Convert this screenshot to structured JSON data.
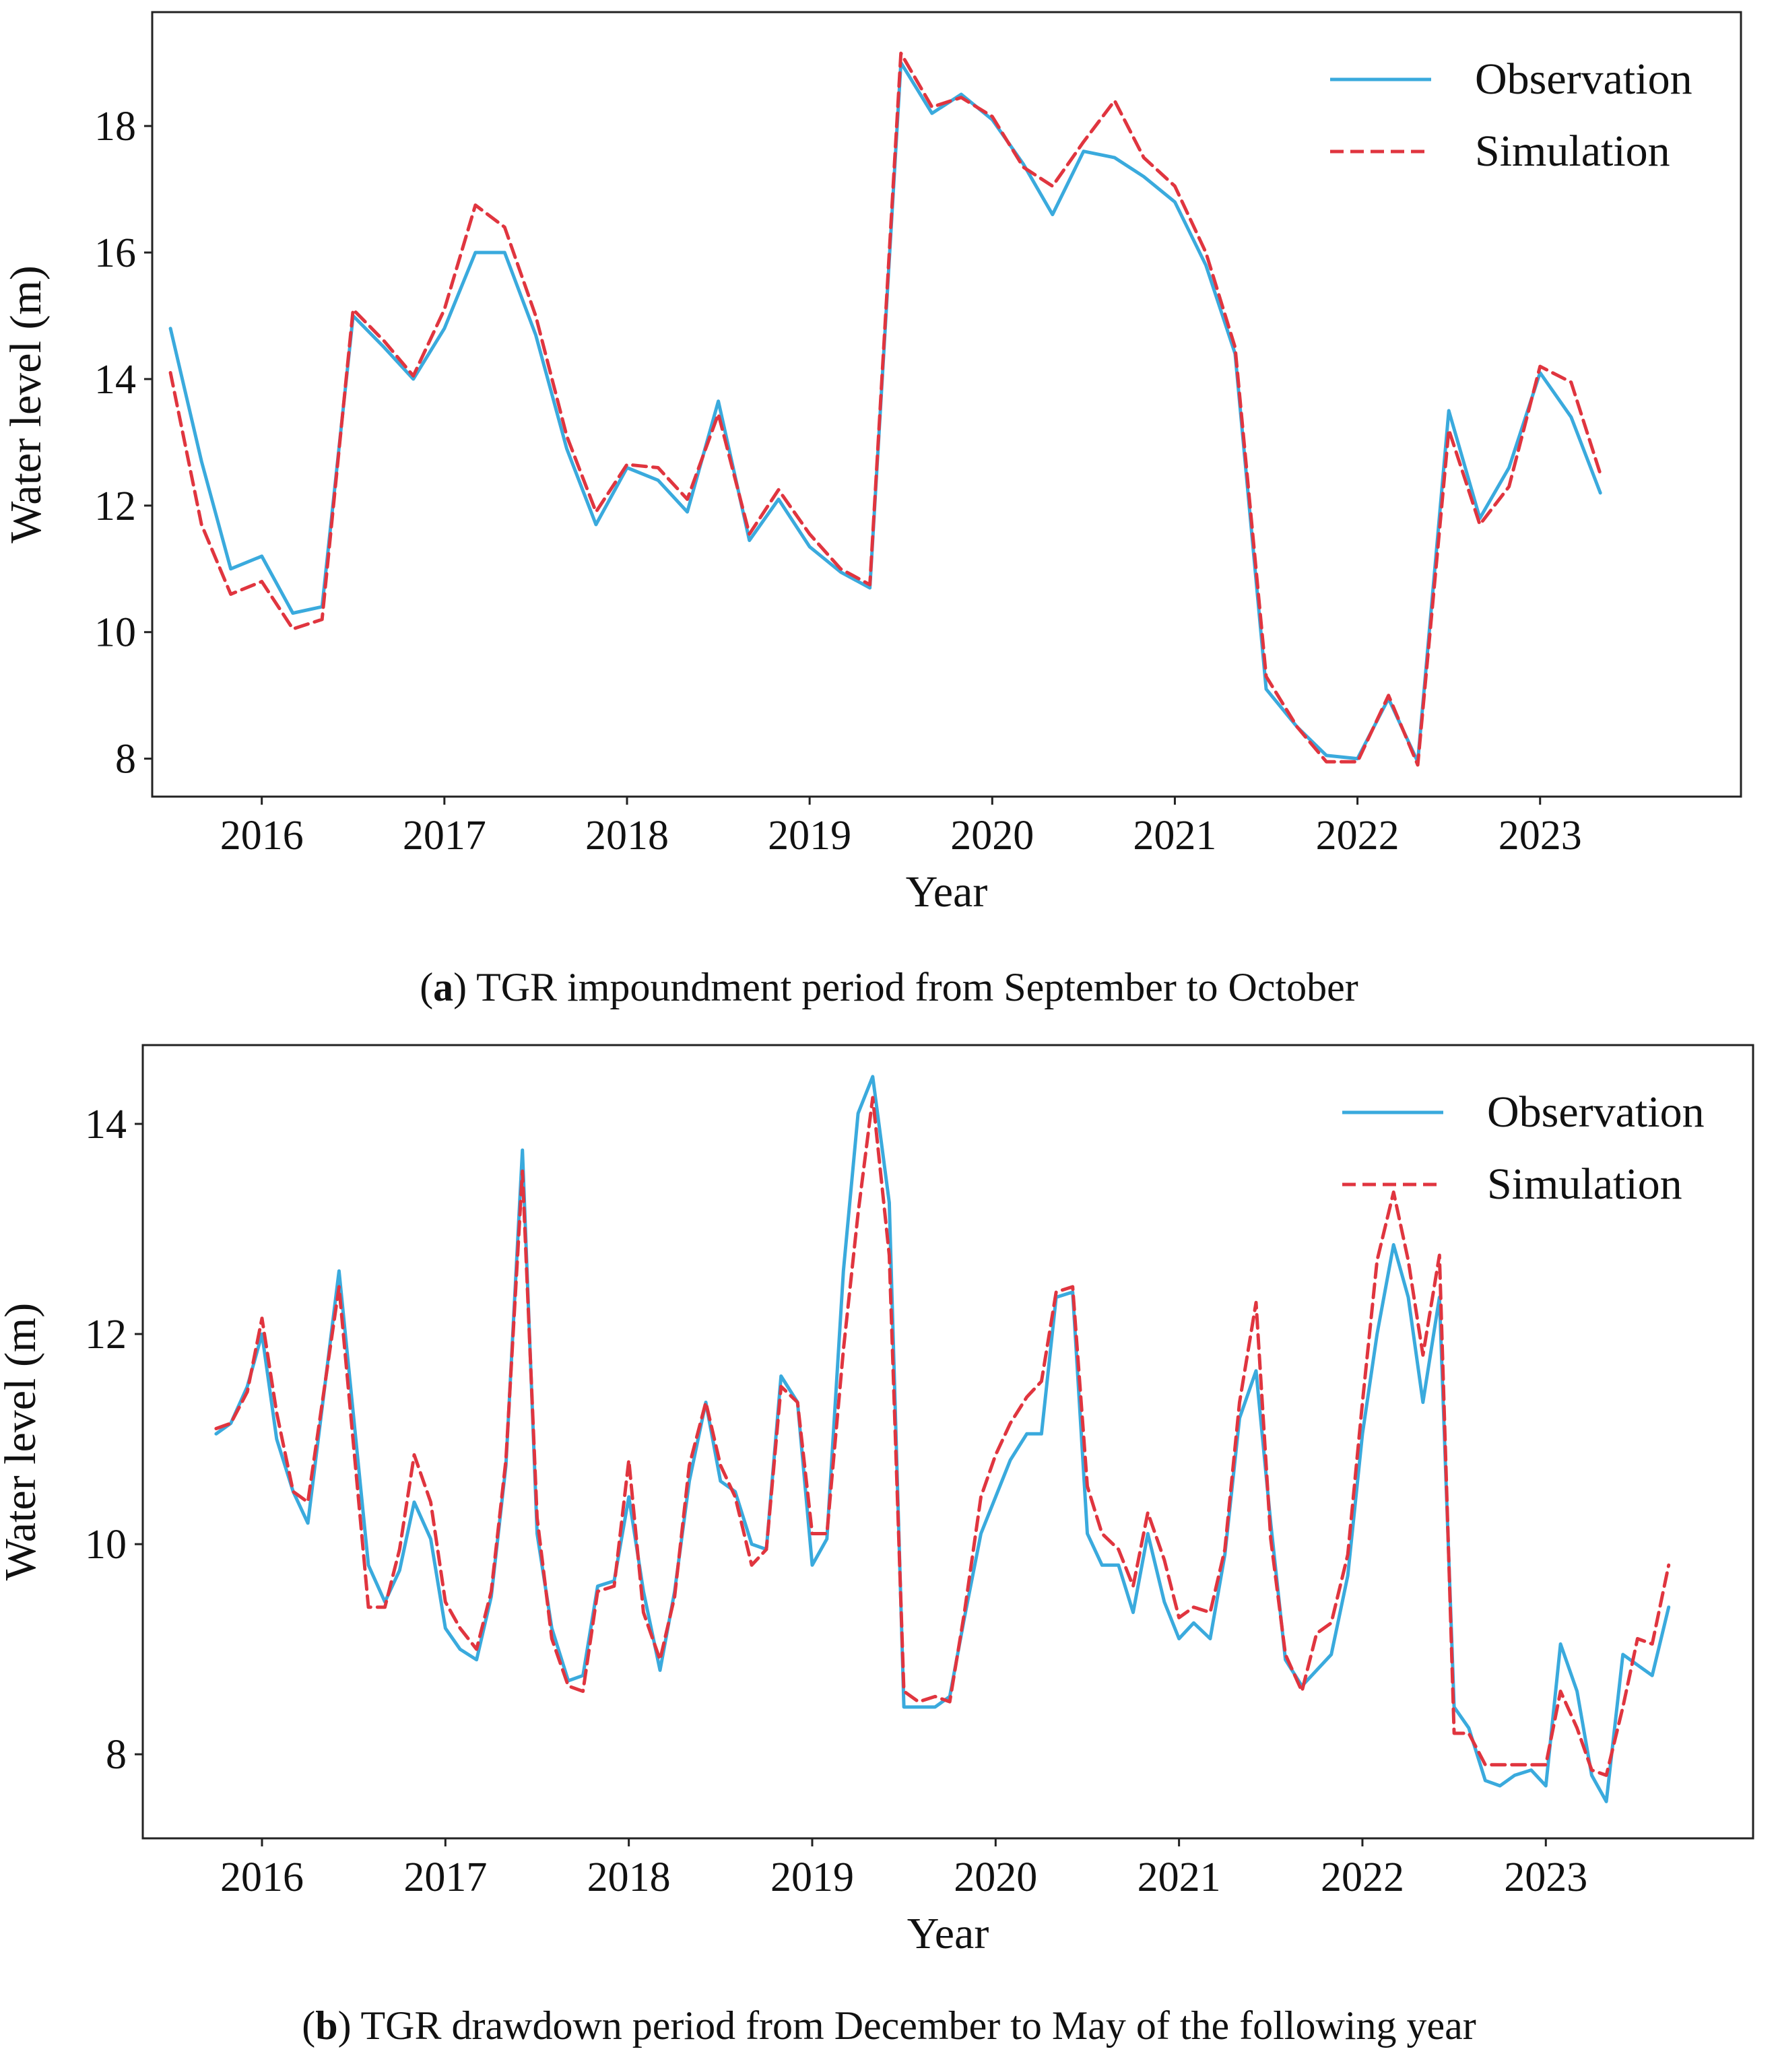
{
  "chart_data": [
    {
      "type": "line",
      "title": "",
      "xlabel": "Year",
      "ylabel": "Water level (m)",
      "xlim": [
        2015.4,
        2024.1
      ],
      "ylim": [
        7.4,
        19.8
      ],
      "xticks": [
        2016,
        2017,
        2018,
        2019,
        2020,
        2021,
        2022,
        2023
      ],
      "yticks": [
        8,
        10,
        12,
        14,
        16,
        18
      ],
      "legend_position": "top-right",
      "colors": {
        "Observation": "#3aaadd",
        "Simulation": "#e0353f"
      },
      "caption": {
        "label": "a",
        "text": " TGR impoundment period from September to October"
      },
      "series": [
        {
          "name": "Observation",
          "x": [
            2015.5,
            2015.67,
            2015.83,
            2016.0,
            2016.17,
            2016.33,
            2016.5,
            2016.67,
            2016.83,
            2017.0,
            2017.17,
            2017.33,
            2017.5,
            2017.67,
            2017.83,
            2018.0,
            2018.17,
            2018.33,
            2018.5,
            2018.67,
            2018.83,
            2019.0,
            2019.17,
            2019.33,
            2019.5,
            2019.67,
            2019.83,
            2020.0,
            2020.17,
            2020.33,
            2020.5,
            2020.67,
            2020.83,
            2021.0,
            2021.17,
            2021.33,
            2021.5,
            2021.67,
            2021.83,
            2022.0,
            2022.17,
            2022.33,
            2022.5,
            2022.67,
            2022.83,
            2023.0,
            2023.17,
            2023.33
          ],
          "values": [
            14.8,
            12.7,
            11.0,
            11.2,
            10.3,
            10.4,
            15.0,
            14.5,
            14.0,
            14.8,
            16.0,
            16.0,
            14.7,
            12.9,
            11.7,
            12.6,
            12.4,
            11.9,
            13.65,
            11.45,
            12.1,
            11.35,
            10.95,
            10.7,
            19.0,
            18.2,
            18.5,
            18.1,
            17.4,
            16.6,
            17.6,
            17.5,
            17.2,
            16.8,
            15.8,
            14.4,
            9.1,
            8.5,
            8.05,
            8.0,
            8.95,
            7.95,
            13.5,
            11.8,
            12.6,
            14.1,
            13.4,
            12.2
          ]
        },
        {
          "name": "Simulation",
          "x": [
            2015.5,
            2015.67,
            2015.83,
            2016.0,
            2016.17,
            2016.33,
            2016.5,
            2016.67,
            2016.83,
            2017.0,
            2017.17,
            2017.33,
            2017.5,
            2017.67,
            2017.83,
            2018.0,
            2018.17,
            2018.33,
            2018.5,
            2018.67,
            2018.83,
            2019.0,
            2019.17,
            2019.33,
            2019.5,
            2019.67,
            2019.83,
            2020.0,
            2020.17,
            2020.33,
            2020.5,
            2020.67,
            2020.83,
            2021.0,
            2021.17,
            2021.33,
            2021.5,
            2021.67,
            2021.83,
            2022.0,
            2022.17,
            2022.33,
            2022.5,
            2022.67,
            2022.83,
            2023.0,
            2023.17,
            2023.33
          ],
          "values": [
            14.1,
            11.7,
            10.6,
            10.8,
            10.05,
            10.2,
            15.1,
            14.6,
            14.05,
            15.1,
            16.75,
            16.4,
            15.0,
            13.1,
            11.9,
            12.65,
            12.6,
            12.1,
            13.45,
            11.55,
            12.25,
            11.55,
            11.0,
            10.75,
            19.15,
            18.3,
            18.45,
            18.15,
            17.35,
            17.05,
            17.75,
            18.4,
            17.5,
            17.05,
            16.0,
            14.5,
            9.3,
            8.5,
            7.95,
            7.95,
            9.0,
            7.9,
            13.2,
            11.7,
            12.3,
            14.2,
            13.95,
            12.5
          ]
        }
      ]
    },
    {
      "type": "line",
      "title": "",
      "xlabel": "Year",
      "ylabel": "Water level (m)",
      "xlim": [
        2015.35,
        2024.13
      ],
      "ylim": [
        7.2,
        14.75
      ],
      "xticks": [
        2016,
        2017,
        2018,
        2019,
        2020,
        2021,
        2022,
        2023
      ],
      "yticks": [
        8,
        10,
        12,
        14
      ],
      "legend_position": "top-right",
      "colors": {
        "Observation": "#3aaadd",
        "Simulation": "#e0353f"
      },
      "caption": {
        "label": "b",
        "text": " TGR drawdown period from December to May of the following year"
      },
      "series": [
        {
          "name": "Observation",
          "x": [
            2015.75,
            2015.83,
            2015.92,
            2016.0,
            2016.08,
            2016.17,
            2016.25,
            2016.42,
            2016.58,
            2016.67,
            2016.75,
            2016.83,
            2016.92,
            2017.0,
            2017.08,
            2017.17,
            2017.25,
            2017.33,
            2017.42,
            2017.5,
            2017.58,
            2017.67,
            2017.75,
            2017.83,
            2017.92,
            2018.0,
            2018.08,
            2018.17,
            2018.25,
            2018.33,
            2018.42,
            2018.5,
            2018.58,
            2018.67,
            2018.75,
            2018.83,
            2018.92,
            2019.0,
            2019.08,
            2019.17,
            2019.25,
            2019.33,
            2019.42,
            2019.5,
            2019.58,
            2019.67,
            2019.75,
            2019.83,
            2019.92,
            2020.0,
            2020.08,
            2020.17,
            2020.25,
            2020.33,
            2020.42,
            2020.5,
            2020.58,
            2020.67,
            2020.75,
            2020.83,
            2020.92,
            2021.0,
            2021.08,
            2021.17,
            2021.25,
            2021.33,
            2021.42,
            2021.5,
            2021.58,
            2021.67,
            2021.75,
            2021.83,
            2021.92,
            2022.0,
            2022.08,
            2022.17,
            2022.25,
            2022.33,
            2022.42,
            2022.5,
            2022.58,
            2022.67,
            2022.75,
            2022.83,
            2022.92,
            2023.0,
            2023.08,
            2023.17,
            2023.25,
            2023.33,
            2023.42,
            2023.5,
            2023.58,
            2023.67
          ],
          "values": [
            11.05,
            11.15,
            11.5,
            12.0,
            11.0,
            10.5,
            10.2,
            12.6,
            9.8,
            9.45,
            9.75,
            10.4,
            10.05,
            9.2,
            9.0,
            8.9,
            9.5,
            10.75,
            13.75,
            10.1,
            9.2,
            8.7,
            8.75,
            9.6,
            9.65,
            10.45,
            9.55,
            8.8,
            9.55,
            10.6,
            11.35,
            10.6,
            10.5,
            10.0,
            9.95,
            11.6,
            11.35,
            9.8,
            10.05,
            12.6,
            14.1,
            14.45,
            13.25,
            8.45,
            8.45,
            8.45,
            8.55,
            9.3,
            10.1,
            10.45,
            10.8,
            11.05,
            11.05,
            12.35,
            12.4,
            10.1,
            9.8,
            9.8,
            9.35,
            10.1,
            9.45,
            9.1,
            9.25,
            9.1,
            9.9,
            11.2,
            11.65,
            10.2,
            8.9,
            8.65,
            8.8,
            8.95,
            9.7,
            11.05,
            12.0,
            12.85,
            12.35,
            11.35,
            12.35,
            8.45,
            8.25,
            7.75,
            7.7,
            7.8,
            7.85,
            7.7,
            9.05,
            8.6,
            7.8,
            7.55,
            8.95,
            8.85,
            8.75,
            9.4
          ]
        },
        {
          "name": "Simulation",
          "x": [
            2015.75,
            2015.83,
            2015.92,
            2016.0,
            2016.08,
            2016.17,
            2016.25,
            2016.42,
            2016.58,
            2016.67,
            2016.75,
            2016.83,
            2016.92,
            2017.0,
            2017.08,
            2017.17,
            2017.25,
            2017.33,
            2017.42,
            2017.5,
            2017.58,
            2017.67,
            2017.75,
            2017.83,
            2017.92,
            2018.0,
            2018.08,
            2018.17,
            2018.25,
            2018.33,
            2018.42,
            2018.5,
            2018.58,
            2018.67,
            2018.75,
            2018.83,
            2018.92,
            2019.0,
            2019.08,
            2019.17,
            2019.25,
            2019.33,
            2019.42,
            2019.5,
            2019.58,
            2019.67,
            2019.75,
            2019.83,
            2019.92,
            2020.0,
            2020.08,
            2020.17,
            2020.25,
            2020.33,
            2020.42,
            2020.5,
            2020.58,
            2020.67,
            2020.75,
            2020.83,
            2020.92,
            2021.0,
            2021.08,
            2021.17,
            2021.25,
            2021.33,
            2021.42,
            2021.5,
            2021.58,
            2021.67,
            2021.75,
            2021.83,
            2021.92,
            2022.0,
            2022.08,
            2022.17,
            2022.25,
            2022.33,
            2022.42,
            2022.5,
            2022.58,
            2022.67,
            2022.75,
            2022.83,
            2022.92,
            2023.0,
            2023.08,
            2023.17,
            2023.25,
            2023.33,
            2023.42,
            2023.5,
            2023.58,
            2023.67
          ],
          "values": [
            11.1,
            11.15,
            11.45,
            12.15,
            11.25,
            10.5,
            10.4,
            12.45,
            9.4,
            9.4,
            9.95,
            10.85,
            10.4,
            9.45,
            9.2,
            9.0,
            9.55,
            10.8,
            13.55,
            10.25,
            9.1,
            8.65,
            8.6,
            9.55,
            9.6,
            10.8,
            9.35,
            8.9,
            9.5,
            10.75,
            11.35,
            10.75,
            10.45,
            9.8,
            9.95,
            11.5,
            11.35,
            10.1,
            10.1,
            11.85,
            13.15,
            14.25,
            12.75,
            8.6,
            8.5,
            8.55,
            8.5,
            9.35,
            10.45,
            10.85,
            11.15,
            11.4,
            11.55,
            12.4,
            12.45,
            10.55,
            10.1,
            9.95,
            9.6,
            10.3,
            9.85,
            9.3,
            9.4,
            9.35,
            9.95,
            11.35,
            12.3,
            10.05,
            8.95,
            8.6,
            9.15,
            9.25,
            9.9,
            11.35,
            12.7,
            13.35,
            12.7,
            11.8,
            12.75,
            8.2,
            8.2,
            7.9,
            7.9,
            7.9,
            7.9,
            7.9,
            8.6,
            8.25,
            7.85,
            7.8,
            8.45,
            9.1,
            9.05,
            9.8
          ]
        }
      ]
    }
  ]
}
